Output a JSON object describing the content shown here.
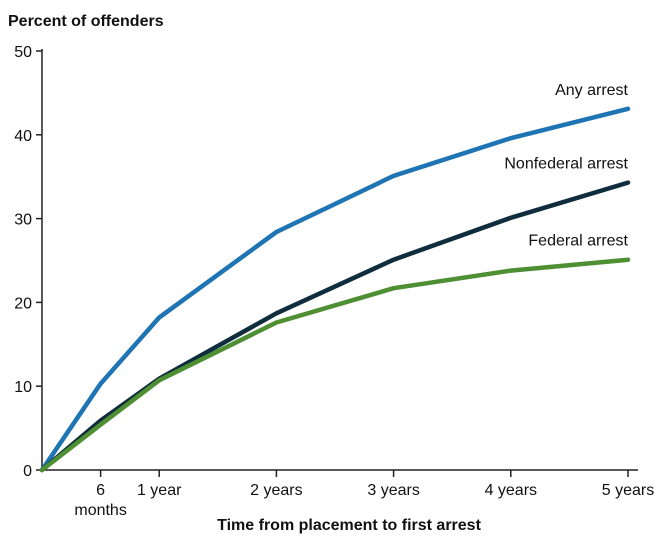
{
  "chart_data": {
    "type": "line",
    "title": "",
    "ylabel": "Percent of offenders",
    "xlabel": "Time from placement to first arrest",
    "ylim": [
      0,
      50
    ],
    "yticks": [
      0,
      10,
      20,
      30,
      40,
      50
    ],
    "x": [
      0,
      0.5,
      1,
      2,
      3,
      4,
      5
    ],
    "xticks": [
      {
        "value": 0.5,
        "label": "6",
        "label2": "months"
      },
      {
        "value": 1,
        "label": "1 year"
      },
      {
        "value": 2,
        "label": "2 years"
      },
      {
        "value": 3,
        "label": "3 years"
      },
      {
        "value": 4,
        "label": "4 years"
      },
      {
        "value": 5,
        "label": "5 years"
      }
    ],
    "grid": false,
    "series": [
      {
        "name": "Any arrest",
        "color": "#1f74b4",
        "values": [
          0,
          10.3,
          18.2,
          28.4,
          35.1,
          39.6,
          43.1
        ]
      },
      {
        "name": "Nonfederal arrest",
        "color": "#0f2d3c",
        "values": [
          0,
          5.9,
          10.9,
          18.7,
          25.1,
          30.1,
          34.3
        ]
      },
      {
        "name": "Federal arrest",
        "color": "#4f8f33",
        "values": [
          0,
          5.4,
          10.7,
          17.6,
          21.7,
          23.8,
          25.1
        ]
      }
    ]
  }
}
